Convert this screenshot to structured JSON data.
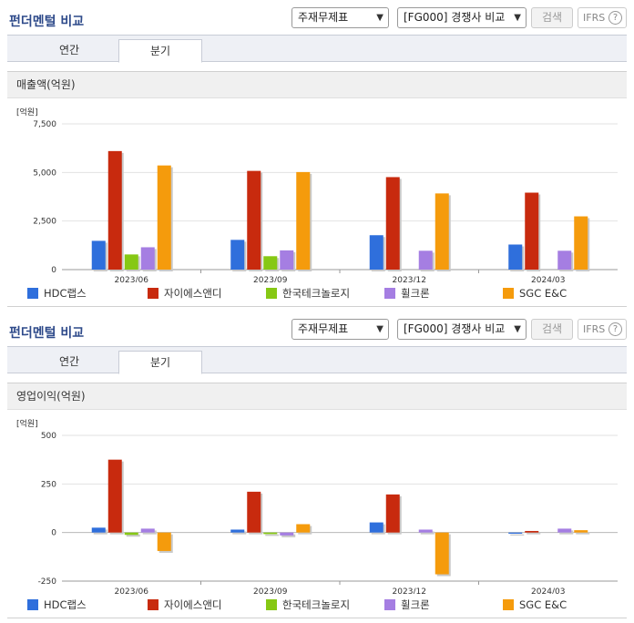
{
  "panels": [
    {
      "title": "펀더멘털 비교",
      "statement_select": "주재무제표",
      "compare_select": "[FG000] 경쟁사 비교",
      "search_label": "검색",
      "ifrs_label": "IFRS",
      "help_label": "?",
      "tabs": [
        {
          "label": "연간"
        },
        {
          "label": "분기"
        }
      ],
      "active_tab": "분기",
      "section_label": "매출액(억원)",
      "chart_data": {
        "type": "bar",
        "title": "",
        "unit_label": "[억원]",
        "ylabel": "",
        "xlabel": "",
        "categories": [
          "2023/06",
          "2023/09",
          "2023/12",
          "2024/03"
        ],
        "ylim": [
          0,
          7500
        ],
        "yticks": [
          0,
          2500,
          5000,
          7500
        ],
        "ytick_labels": [
          "0",
          "2,500",
          "5,000",
          "7,500"
        ],
        "grid": true,
        "legend_position": "bottom",
        "series": [
          {
            "name": "HDC랩스",
            "color": "#2f6fdc",
            "values": [
              1480,
              1530,
              1770,
              1290
            ]
          },
          {
            "name": "자이에스앤디",
            "color": "#c82a0e",
            "values": [
              6100,
              5080,
              4760,
              3960
            ]
          },
          {
            "name": "한국테크놀로지",
            "color": "#86c814",
            "values": [
              780,
              690,
              null,
              null
            ]
          },
          {
            "name": "휠크론",
            "color": "#a57ee2",
            "values": [
              1150,
              990,
              970,
              970
            ]
          },
          {
            "name": "SGC E&C",
            "color": "#f59b0c",
            "values": [
              5360,
              5020,
              3920,
              2740
            ]
          }
        ]
      }
    },
    {
      "title": "펀더멘털 비교",
      "statement_select": "주재무제표",
      "compare_select": "[FG000] 경쟁사 비교",
      "search_label": "검색",
      "ifrs_label": "IFRS",
      "help_label": "?",
      "tabs": [
        {
          "label": "연간"
        },
        {
          "label": "분기"
        }
      ],
      "active_tab": "분기",
      "section_label": "영업이익(억원)",
      "chart_data": {
        "type": "bar",
        "title": "",
        "unit_label": "[억원]",
        "ylabel": "",
        "xlabel": "",
        "categories": [
          "2023/06",
          "2023/09",
          "2023/12",
          "2024/03"
        ],
        "ylim": [
          -250,
          500
        ],
        "yticks": [
          -250,
          0,
          250,
          500
        ],
        "ytick_labels": [
          "-250",
          "0",
          "250",
          "500"
        ],
        "grid": true,
        "legend_position": "bottom",
        "series": [
          {
            "name": "HDC랩스",
            "color": "#2f6fdc",
            "values": [
              25,
              15,
              52,
              -6
            ]
          },
          {
            "name": "자이에스앤디",
            "color": "#c82a0e",
            "values": [
              375,
              210,
              196,
              8
            ]
          },
          {
            "name": "한국테크놀로지",
            "color": "#86c814",
            "values": [
              -12,
              -8,
              null,
              null
            ]
          },
          {
            "name": "휠크론",
            "color": "#a57ee2",
            "values": [
              20,
              -15,
              15,
              20
            ]
          },
          {
            "name": "SGC E&C",
            "color": "#f59b0c",
            "values": [
              -95,
              43,
              -215,
              12
            ]
          }
        ]
      }
    }
  ]
}
